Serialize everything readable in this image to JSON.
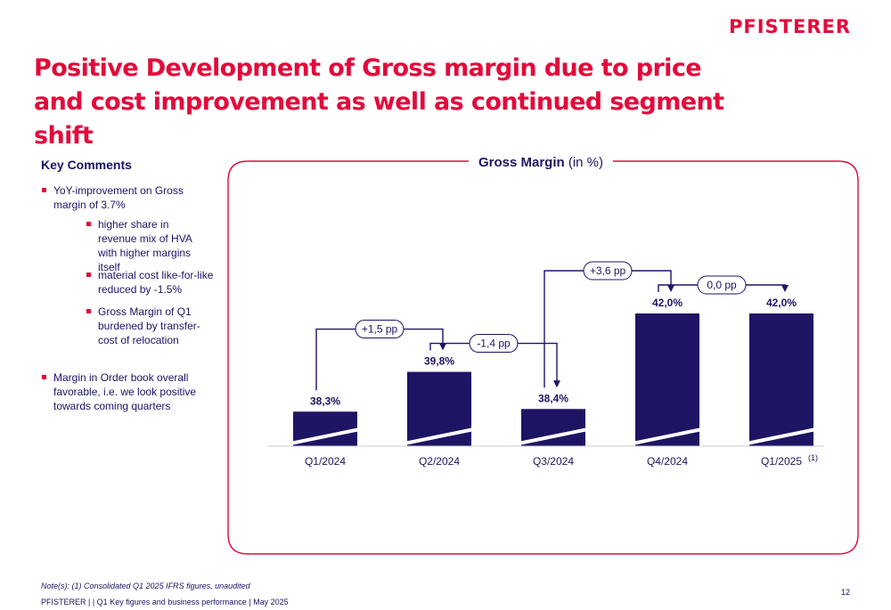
{
  "logo": "PFISTERER",
  "title": "Positive Development of Gross margin due to price and cost improvement as well as continued segment shift",
  "comments": {
    "heading": "Key Comments",
    "b1": "YoY-improvement on Gross margin of 3.7%",
    "b2": "higher share in revenue mix of HVA with higher margins itself",
    "b3": "material cost like-for-like reduced by  -1.5%",
    "b4": "Gross Margin of Q1 burdened by transfer-cost of relocation",
    "b5": "Margin in Order book overall favorable, i.e. we look positive towards coming quarters"
  },
  "colors": {
    "accent": "#e30a3b",
    "bar": "#1e1464"
  },
  "chart_data": {
    "type": "bar",
    "title": "Gross Margin",
    "title_unit": "(in %)",
    "categories": [
      "Q1/2024",
      "Q2/2024",
      "Q3/2024",
      "Q4/2024",
      "Q1/2025"
    ],
    "category_superscripts": [
      "",
      "",
      "",
      "",
      "(1)"
    ],
    "values": [
      38.3,
      39.8,
      38.4,
      42.0,
      42.0
    ],
    "value_labels": [
      "38,3%",
      "39,8%",
      "38,4%",
      "42,0%",
      "42,0%"
    ],
    "axis_break": true,
    "deltas": [
      {
        "from": 0,
        "to": 1,
        "label": "+1,5 pp"
      },
      {
        "from": 1,
        "to": 2,
        "label": "-1,4 pp"
      },
      {
        "from": 2,
        "to": 3,
        "label": "+3,6 pp"
      },
      {
        "from": 3,
        "to": 4,
        "label": "0,0 pp"
      }
    ]
  },
  "note": "Note(s): (1) Consolidated Q1 2025 IFRS figures, unaudited",
  "footer": "PFISTERER | | Q1 Key figures and business performance | May 2025",
  "page_number": "12"
}
